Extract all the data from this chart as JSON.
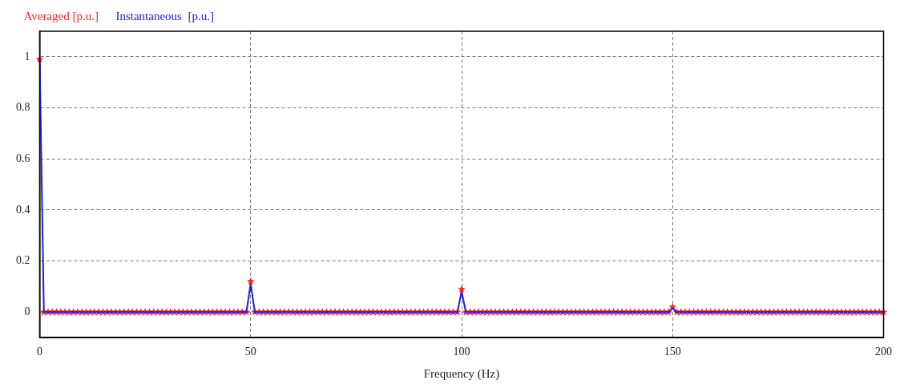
{
  "chart_data": {
    "type": "line",
    "xlabel": "Frequency (Hz)",
    "x": [
      0,
      1,
      2,
      3,
      4,
      5,
      6,
      7,
      8,
      9,
      10,
      11,
      12,
      13,
      14,
      15,
      16,
      17,
      18,
      19,
      20,
      21,
      22,
      23,
      24,
      25,
      26,
      27,
      28,
      29,
      30,
      31,
      32,
      33,
      34,
      35,
      36,
      37,
      38,
      39,
      40,
      41,
      42,
      43,
      44,
      45,
      46,
      47,
      48,
      49,
      50,
      51,
      52,
      53,
      54,
      55,
      56,
      57,
      58,
      59,
      60,
      61,
      62,
      63,
      64,
      65,
      66,
      67,
      68,
      69,
      70,
      71,
      72,
      73,
      74,
      75,
      76,
      77,
      78,
      79,
      80,
      81,
      82,
      83,
      84,
      85,
      86,
      87,
      88,
      89,
      90,
      91,
      92,
      93,
      94,
      95,
      96,
      97,
      98,
      99,
      100,
      101,
      102,
      103,
      104,
      105,
      106,
      107,
      108,
      109,
      110,
      111,
      112,
      113,
      114,
      115,
      116,
      117,
      118,
      119,
      120,
      121,
      122,
      123,
      124,
      125,
      126,
      127,
      128,
      129,
      130,
      131,
      132,
      133,
      134,
      135,
      136,
      137,
      138,
      139,
      140,
      141,
      142,
      143,
      144,
      145,
      146,
      147,
      148,
      149,
      150,
      151,
      152,
      153,
      154,
      155,
      156,
      157,
      158,
      159,
      160,
      161,
      162,
      163,
      164,
      165,
      166,
      167,
      168,
      169,
      170,
      171,
      172,
      173,
      174,
      175,
      176,
      177,
      178,
      179,
      180,
      181,
      182,
      183,
      184,
      185,
      186,
      187,
      188,
      189,
      190,
      191,
      192,
      193,
      194,
      195,
      196,
      197,
      198,
      199,
      200
    ],
    "series": [
      {
        "name": "Averaged [p.u.]",
        "color": "#ff2020",
        "marker": "star",
        "values": [
          0.99,
          0,
          0,
          0,
          0,
          0,
          0,
          0,
          0,
          0,
          0,
          0,
          0,
          0,
          0,
          0,
          0,
          0,
          0,
          0,
          0,
          0,
          0,
          0,
          0,
          0,
          0,
          0,
          0,
          0,
          0,
          0,
          0,
          0,
          0,
          0,
          0,
          0,
          0,
          0,
          0,
          0,
          0,
          0,
          0,
          0,
          0,
          0,
          0,
          0,
          0.12,
          0,
          0,
          0,
          0,
          0,
          0,
          0,
          0,
          0,
          0,
          0,
          0,
          0,
          0,
          0,
          0,
          0,
          0,
          0,
          0,
          0,
          0,
          0,
          0,
          0,
          0,
          0,
          0,
          0,
          0,
          0,
          0,
          0,
          0,
          0,
          0,
          0,
          0,
          0,
          0,
          0,
          0,
          0,
          0,
          0,
          0,
          0,
          0,
          0,
          0.09,
          0,
          0,
          0,
          0,
          0,
          0,
          0,
          0,
          0,
          0,
          0,
          0,
          0,
          0,
          0,
          0,
          0,
          0,
          0,
          0,
          0,
          0,
          0,
          0,
          0,
          0,
          0,
          0,
          0,
          0,
          0,
          0,
          0,
          0,
          0,
          0,
          0,
          0,
          0,
          0,
          0,
          0,
          0,
          0,
          0,
          0,
          0,
          0,
          0,
          0.02,
          0,
          0,
          0,
          0,
          0,
          0,
          0,
          0,
          0,
          0,
          0,
          0,
          0,
          0,
          0,
          0,
          0,
          0,
          0,
          0,
          0,
          0,
          0,
          0,
          0,
          0,
          0,
          0,
          0,
          0,
          0,
          0,
          0,
          0,
          0,
          0,
          0,
          0,
          0,
          0,
          0,
          0,
          0,
          0,
          0,
          0,
          0,
          0,
          0,
          0
        ]
      },
      {
        "name": "Instantaneous  [p.u.]",
        "color": "#2020e0",
        "marker": "none",
        "values": [
          0.99,
          0,
          0,
          0,
          0,
          0,
          0,
          0,
          0,
          0,
          0,
          0,
          0,
          0,
          0,
          0,
          0,
          0,
          0,
          0,
          0,
          0,
          0,
          0,
          0,
          0,
          0,
          0,
          0,
          0,
          0,
          0,
          0,
          0,
          0,
          0,
          0,
          0,
          0,
          0,
          0,
          0,
          0,
          0,
          0,
          0,
          0,
          0,
          0,
          0,
          0.11,
          0,
          0,
          0,
          0,
          0,
          0,
          0,
          0,
          0,
          0,
          0,
          0,
          0,
          0,
          0,
          0,
          0,
          0,
          0,
          0,
          0,
          0,
          0,
          0,
          0,
          0,
          0,
          0,
          0,
          0,
          0,
          0,
          0,
          0,
          0,
          0,
          0,
          0,
          0,
          0,
          0,
          0,
          0,
          0,
          0,
          0,
          0,
          0,
          0,
          0.08,
          0,
          0,
          0,
          0,
          0,
          0,
          0,
          0,
          0,
          0,
          0,
          0,
          0,
          0,
          0,
          0,
          0,
          0,
          0,
          0,
          0,
          0,
          0,
          0,
          0,
          0,
          0,
          0,
          0,
          0,
          0,
          0,
          0,
          0,
          0,
          0,
          0,
          0,
          0,
          0,
          0,
          0,
          0,
          0,
          0,
          0,
          0,
          0,
          0,
          0.015,
          0,
          0,
          0,
          0,
          0,
          0,
          0,
          0,
          0,
          0,
          0,
          0,
          0,
          0,
          0,
          0,
          0,
          0,
          0,
          0,
          0,
          0,
          0,
          0,
          0,
          0,
          0,
          0,
          0,
          0,
          0,
          0,
          0,
          0,
          0,
          0,
          0,
          0,
          0,
          0,
          0,
          0,
          0,
          0,
          0,
          0,
          0,
          0,
          0,
          0
        ]
      }
    ],
    "xlim": [
      0,
      200
    ],
    "xticks": [
      0,
      50,
      100,
      150,
      200
    ],
    "ylim": [
      -0.1,
      1.1
    ],
    "yticks": [
      0,
      0.2,
      0.4,
      0.6,
      0.8,
      1
    ],
    "grid": true,
    "legend": "top left",
    "line_style": "solid"
  }
}
